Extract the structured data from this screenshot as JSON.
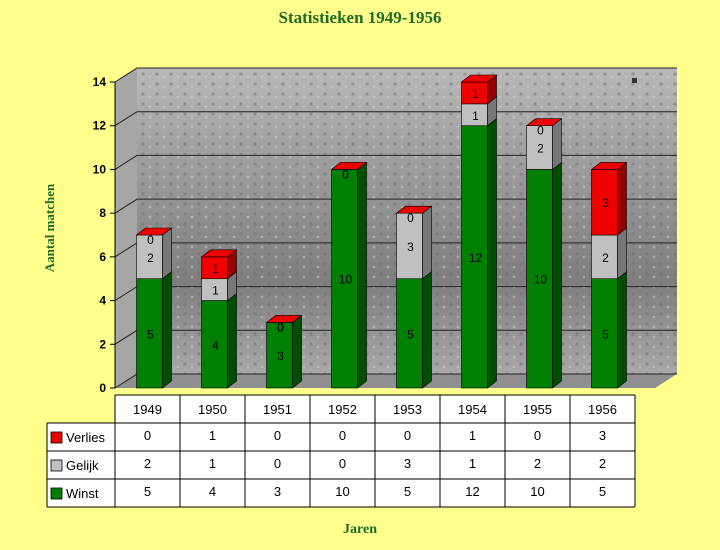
{
  "chart_data": {
    "type": "bar",
    "stacked": true,
    "title": "Statistieken 1949-1956",
    "xlabel": "Jaren",
    "ylabel": "Aantal matchen",
    "ylim": [
      0,
      14
    ],
    "yticks": [
      "0",
      "2",
      "4",
      "6",
      "8",
      "10",
      "12",
      "14"
    ],
    "grid": true,
    "legend": "bottom-left table",
    "categories": [
      "1949",
      "1950",
      "1951",
      "1952",
      "1953",
      "1954",
      "1955",
      "1956"
    ],
    "series": [
      {
        "name": "Verlies",
        "color": "#ee0000",
        "values": [
          0,
          1,
          0,
          0,
          0,
          1,
          0,
          3
        ]
      },
      {
        "name": "Gelijk",
        "color": "#c0c0c0",
        "values": [
          2,
          1,
          0,
          0,
          3,
          1,
          2,
          2
        ]
      },
      {
        "name": "Winst",
        "color": "#008000",
        "values": [
          5,
          4,
          3,
          10,
          5,
          12,
          10,
          5
        ]
      }
    ]
  }
}
